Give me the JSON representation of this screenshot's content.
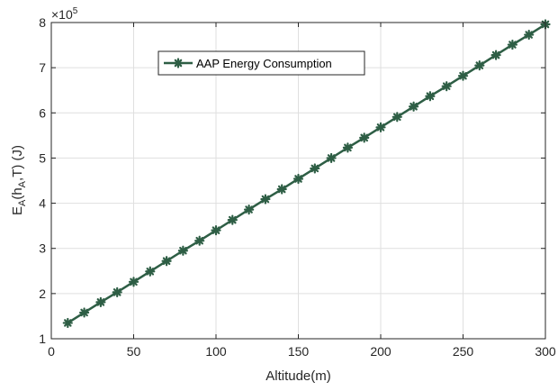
{
  "chart_data": {
    "type": "line",
    "xlabel": "Altitude(m)",
    "ylabel_base": "E",
    "ylabel_sub1": "A",
    "ylabel_mid": "(h",
    "ylabel_sub2": "A",
    "ylabel_end": ",T) (J)",
    "y_multiplier_base": "×10",
    "y_multiplier_exp": "5",
    "xlim": [
      0,
      300
    ],
    "ylim": [
      1,
      8
    ],
    "y_scale_note": "values in units of 10^5 J",
    "x_ticks": [
      "0",
      "50",
      "100",
      "150",
      "200",
      "250",
      "300"
    ],
    "y_ticks": [
      "1",
      "2",
      "3",
      "4",
      "5",
      "6",
      "7",
      "8"
    ],
    "grid": true,
    "legend_position": "top-left",
    "series": [
      {
        "name": "AAP Energy Consumption",
        "color": "#2e5e45",
        "marker": "asterisk",
        "x": [
          10,
          20,
          30,
          40,
          50,
          60,
          70,
          80,
          90,
          100,
          110,
          120,
          130,
          140,
          150,
          160,
          170,
          180,
          190,
          200,
          210,
          220,
          230,
          240,
          250,
          260,
          270,
          280,
          290,
          300
        ],
        "y": [
          1.35,
          1.58,
          1.81,
          2.03,
          2.26,
          2.49,
          2.72,
          2.95,
          3.17,
          3.4,
          3.63,
          3.86,
          4.09,
          4.31,
          4.54,
          4.77,
          5.0,
          5.23,
          5.45,
          5.68,
          5.91,
          6.14,
          6.37,
          6.59,
          6.82,
          7.05,
          7.28,
          7.51,
          7.73,
          7.96
        ]
      }
    ]
  }
}
